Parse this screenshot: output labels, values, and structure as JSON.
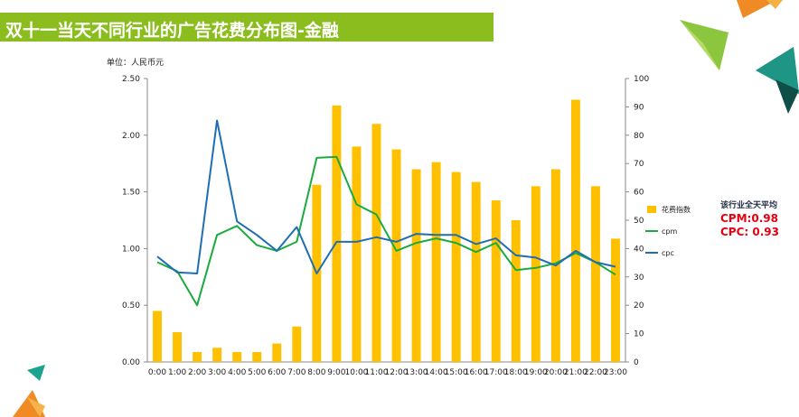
{
  "page": {
    "title": "双十一当天不同行业的广告花费分布图-金融",
    "unit": "单位：人民币元"
  },
  "summary": {
    "title": "该行业全天平均",
    "cpm": "CPM:0.98",
    "cpc": "CPC: 0.93"
  },
  "colors": {
    "title_bar": "#8cbd1e",
    "bar": "#ffc000",
    "cpm": "#1aab3d",
    "cpc": "#1f6eb4",
    "summary_value": "#e60012"
  },
  "chart_data": {
    "type": "bar+line",
    "categories": [
      "0:00",
      "1:00",
      "2:00",
      "3:00",
      "4:00",
      "5:00",
      "6:00",
      "7:00",
      "8:00",
      "9:00",
      "10:00",
      "11:00",
      "12:00",
      "13:00",
      "14:00",
      "15:00",
      "16:00",
      "17:00",
      "18:00",
      "19:00",
      "20:00",
      "21:00",
      "22:00",
      "23:00"
    ],
    "category_labels": [
      "0:00",
      "1:00",
      "2:00",
      "3:00",
      "4:00",
      "5:00",
      "6:00",
      "7:00",
      "8:00",
      "9:00",
      "10:00",
      "11:00",
      "12:00",
      "13:00",
      "14:00",
      "15:00",
      "16:00",
      "17:00",
      "18:00",
      "19:00",
      "20:00",
      "21:00",
      "22:00",
      "23:00"
    ],
    "series": [
      {
        "name": "花费指数",
        "kind": "bar",
        "axis": "right",
        "values": [
          18,
          10.5,
          3.5,
          5,
          3.5,
          3.5,
          6.5,
          12.5,
          62.5,
          90.5,
          76,
          84,
          75,
          68,
          70.5,
          67,
          63.5,
          57,
          50,
          62,
          68,
          92.5,
          62,
          43.5
        ]
      },
      {
        "name": "cpm",
        "kind": "line",
        "axis": "left",
        "values": [
          0.88,
          0.8,
          0.5,
          1.12,
          1.2,
          1.03,
          0.98,
          1.06,
          1.8,
          1.81,
          1.39,
          1.3,
          0.98,
          1.05,
          1.09,
          1.05,
          0.97,
          1.05,
          0.81,
          0.83,
          0.87,
          0.96,
          0.88,
          0.77
        ]
      },
      {
        "name": "cpc",
        "kind": "line",
        "axis": "left",
        "values": [
          0.93,
          0.79,
          0.78,
          2.13,
          1.24,
          1.12,
          0.98,
          1.19,
          0.78,
          1.06,
          1.06,
          1.1,
          1.06,
          1.13,
          1.12,
          1.12,
          1.04,
          1.09,
          0.94,
          0.92,
          0.85,
          0.98,
          0.88,
          0.84
        ]
      }
    ],
    "y_left": {
      "min": 0,
      "max": 2.5,
      "ticks": [
        "0.00",
        "0.50",
        "1.00",
        "1.50",
        "2.00",
        "2.50"
      ]
    },
    "y_right": {
      "min": 0,
      "max": 100,
      "ticks": [
        "0",
        "10",
        "20",
        "30",
        "40",
        "50",
        "60",
        "70",
        "80",
        "90",
        "100"
      ]
    },
    "grid": false,
    "legend": "right"
  }
}
